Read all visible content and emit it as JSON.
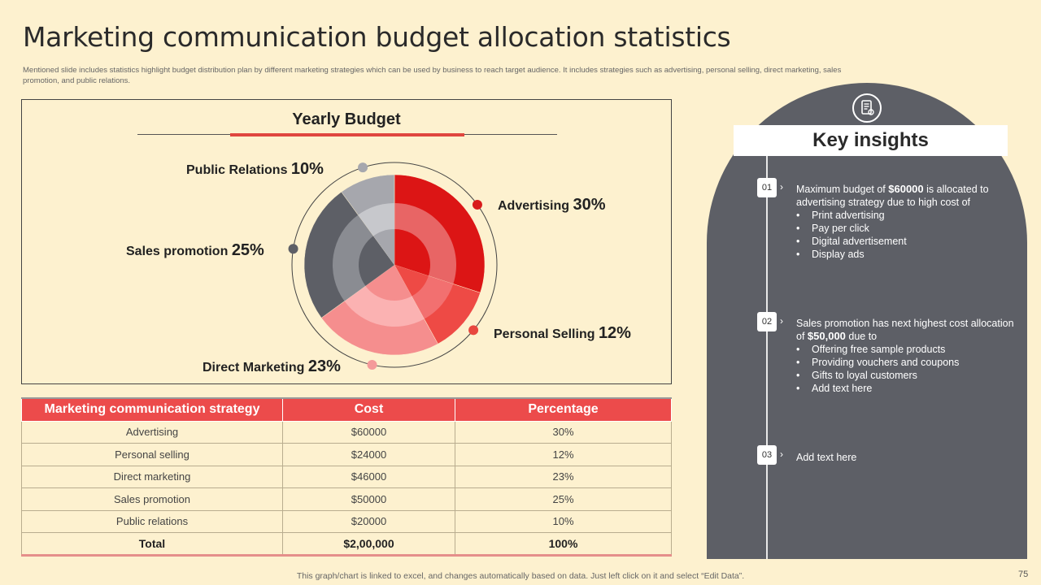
{
  "slide": {
    "title": "Marketing communication budget allocation statistics",
    "subtitle": "Mentioned slide includes statistics highlight budget distribution plan by different marketing strategies which can be used by business to reach target audience. It includes strategies such as advertising, personal selling, direct marketing, sales promotion, and public relations.",
    "footer": "This graph/chart is linked to excel, and changes automatically based on data. Just left click on it and select “Edit Data”.",
    "page_number": "75"
  },
  "chart_data": {
    "type": "pie",
    "title": "Yearly Budget",
    "categories": [
      "Advertising",
      "Personal Selling",
      "Direct Marketing",
      "Sales promotion",
      "Public Relations"
    ],
    "values": [
      30,
      12,
      23,
      25,
      10
    ],
    "labels": [
      "Advertising",
      "Personal Selling",
      "Direct Marketing",
      "Sales promotion",
      "Public Relations"
    ],
    "pct_labels": [
      "30%",
      "12%",
      "23%",
      "25%",
      "10%"
    ],
    "colors": [
      "#dc1515",
      "#ee4a45",
      "#f58e8e",
      "#5d5f66",
      "#a6a7ad"
    ],
    "inner_colors": [
      "#e86565",
      "#f27070",
      "#fbb2b2",
      "#8a8c92",
      "#c7c8cc"
    ],
    "center_colors": [
      "#dc1515",
      "#ee4a45",
      "#f58e8e",
      "#5d5f66",
      "#a6a7ad"
    ],
    "dot_colors": [
      "#d81b1b",
      "#e8473f",
      "#f49a9a",
      "#5d5f66",
      "#a6a7ad"
    ]
  },
  "table": {
    "headers": [
      "Marketing communication strategy",
      "Cost",
      "Percentage"
    ],
    "rows": [
      [
        "Advertising",
        "$60000",
        "30%"
      ],
      [
        "Personal selling",
        "$24000",
        "12%"
      ],
      [
        "Direct marketing",
        "$46000",
        "23%"
      ],
      [
        "Sales promotion",
        "$50000",
        "25%"
      ],
      [
        "Public relations",
        "$20000",
        "10%"
      ]
    ],
    "total": [
      "Total",
      "$2,00,000",
      "100%"
    ]
  },
  "insights": {
    "heading": "Key insights",
    "items": [
      {
        "num": "01",
        "pre": "Maximum budget of ",
        "bold": "$60000",
        "post": " is allocated to advertising  strategy due to high cost of",
        "bullets": [
          "Print advertising",
          "Pay per click",
          "Digital advertisement",
          "Display ads"
        ]
      },
      {
        "num": "02",
        "pre": "Sales promotion has next highest cost allocation of ",
        "bold": "$50,000",
        "post": " due to",
        "bullets": [
          "Offering  free sample products",
          "Providing vouchers  and coupons",
          "Gifts to loyal customers",
          "Add text here"
        ]
      },
      {
        "num": "03",
        "pre": "Add text here",
        "bold": "",
        "post": "",
        "bullets": []
      }
    ]
  }
}
